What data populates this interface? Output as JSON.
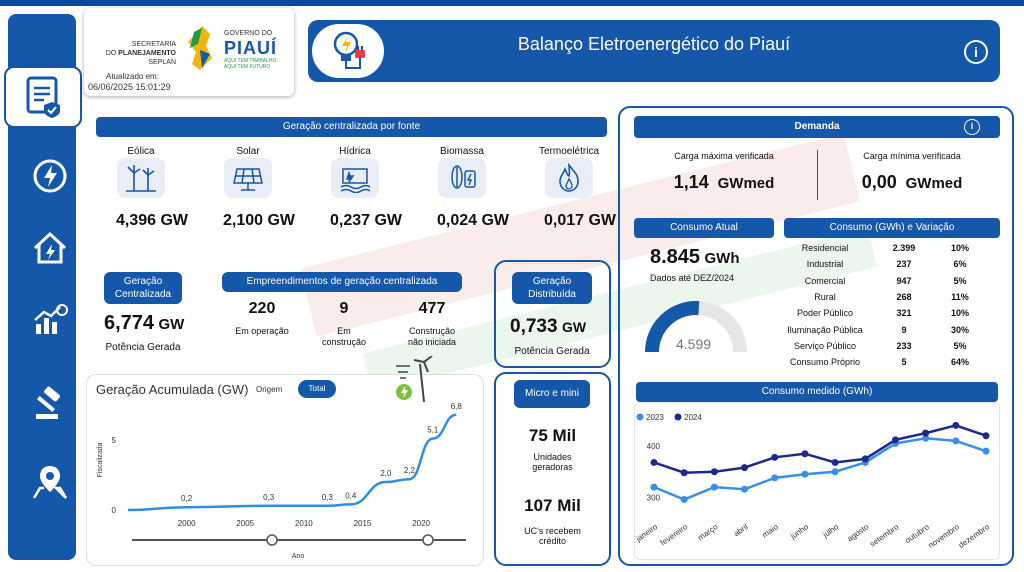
{
  "colors": {
    "primary": "#1557a8",
    "accent": "#4f8fd6",
    "line_2023": "#3a8ee6",
    "line_2024": "#1c2a8a"
  },
  "sidebar": {
    "icons": [
      "document-check-icon",
      "energy-cycle-icon",
      "home-energy-icon",
      "chart-growth-icon",
      "gavel-icon",
      "map-pin-icon"
    ]
  },
  "logo": {
    "line1": "SECRETARIA",
    "line2": "DO",
    "line2b": "PLANEJAMENTO",
    "line3": "SEPLAN",
    "gov": "GOVERNO DO",
    "state": "PIAUÍ",
    "tag1": "AQUI TEM TRABALHO,",
    "tag2": "AQUI TEM FUTURO",
    "updated_label": "Atualizado em:",
    "updated_value": "06/06/2025 15:01:29"
  },
  "header": {
    "title": "Balanço Eletroenergético do Piauí"
  },
  "geracao_fonte": {
    "title": "Geração centralizada por fonte",
    "items": [
      {
        "name": "Eólica",
        "value": "4,396 GW",
        "icon": "wind-turbine-icon"
      },
      {
        "name": "Solar",
        "value": "2,100 GW",
        "icon": "solar-panel-icon"
      },
      {
        "name": "Hídrica",
        "value": "0,237 GW",
        "icon": "hydro-dam-icon"
      },
      {
        "name": "Biomassa",
        "value": "0,024 GW",
        "icon": "biomass-icon"
      },
      {
        "name": "Termoelétrica",
        "value": "0,017 GW",
        "icon": "flame-icon"
      }
    ]
  },
  "centralizada": {
    "title1": "Geração",
    "title2": "Centralizada",
    "value": "6,774",
    "unit": "GW",
    "label": "Potência Gerada"
  },
  "empreendimentos": {
    "title": "Empreendimentos de geração centralizada",
    "items": [
      {
        "value": "220",
        "l1": "Em operação",
        "l2": ""
      },
      {
        "value": "9",
        "l1": "Em",
        "l2": "construção"
      },
      {
        "value": "477",
        "l1": "Construção",
        "l2": "não iniciada"
      }
    ]
  },
  "distribuida": {
    "title1": "Geração",
    "title2": "Distribuída",
    "value": "0,733",
    "unit": "GW",
    "label": "Potência Gerada"
  },
  "micro": {
    "title": "Micro e mini",
    "v1": "75 Mil",
    "l1a": "Unidades",
    "l1b": "geradoras",
    "v2": "107 Mil",
    "l2a": "UC's recebem",
    "l2b": "crédito"
  },
  "acumulada": {
    "title": "Geração Acumulada (GW)",
    "btn_origem": "Origem",
    "btn_total": "Total"
  },
  "demanda": {
    "title": "Demanda",
    "max_label": "Carga máxima verificada",
    "max_value": "1,14",
    "max_unit": "GWmed",
    "min_label": "Carga mínima verificada",
    "min_value": "0,00",
    "min_unit": "GWmed"
  },
  "consumo_atual": {
    "title": "Consumo Atual",
    "value": "8.845",
    "unit": "GWh",
    "note": "Dados até DEZ/2024",
    "gauge_value": "4.599",
    "gauge_fraction": 0.52
  },
  "consumo_var": {
    "title": "Consumo (GWh) e Variação",
    "rows": [
      {
        "name": "Residencial",
        "gwh": "2.399",
        "pct": "10%"
      },
      {
        "name": "Industrial",
        "gwh": "237",
        "pct": "6%"
      },
      {
        "name": "Comercial",
        "gwh": "947",
        "pct": "5%"
      },
      {
        "name": "Rural",
        "gwh": "268",
        "pct": "11%"
      },
      {
        "name": "Poder Público",
        "gwh": "321",
        "pct": "10%"
      },
      {
        "name": "Iluminação Pública",
        "gwh": "9",
        "pct": "30%"
      },
      {
        "name": "Serviço Público",
        "gwh": "233",
        "pct": "5%"
      },
      {
        "name": "Consumo Próprio",
        "gwh": "5",
        "pct": "64%"
      }
    ]
  },
  "chart_data": [
    {
      "type": "line",
      "title": "Geração Acumulada (GW)",
      "xlabel": "Ano",
      "ylabel": "Fiscalizada",
      "x": [
        1995,
        2000,
        2007,
        2012,
        2014,
        2017,
        2019,
        2021,
        2023
      ],
      "values": [
        0,
        0.2,
        0.3,
        0.3,
        0.4,
        2.0,
        2.2,
        5.1,
        6.8
      ],
      "data_labels": [
        {
          "x": 2000,
          "label": "0,2"
        },
        {
          "x": 2007,
          "label": "0,3"
        },
        {
          "x": 2012,
          "label": "0,3"
        },
        {
          "x": 2014,
          "label": "0,4"
        },
        {
          "x": 2017,
          "label": "2,0"
        },
        {
          "x": 2019,
          "label": "2,2"
        },
        {
          "x": 2021,
          "label": "5,1"
        },
        {
          "x": 2023,
          "label": "6,8"
        }
      ],
      "xticks": [
        2000,
        2005,
        2010,
        2015,
        2020
      ],
      "yticks": [
        0,
        5
      ],
      "xlim": [
        1995,
        2024
      ],
      "ylim": [
        0,
        7
      ],
      "grid": false
    },
    {
      "type": "line",
      "title": "Consumo medido (GWh)",
      "categories": [
        "janeiro",
        "fevereiro",
        "março",
        "abril",
        "maio",
        "junho",
        "julho",
        "agosto",
        "setembro",
        "outubro",
        "novembro",
        "dezembro"
      ],
      "series": [
        {
          "name": "2023",
          "values": [
            320,
            296,
            320,
            316,
            338,
            345,
            350,
            368,
            405,
            415,
            410,
            390
          ]
        },
        {
          "name": "2024",
          "values": [
            368,
            348,
            350,
            358,
            378,
            385,
            368,
            375,
            412,
            425,
            440,
            420
          ]
        }
      ],
      "yticks": [
        300,
        400
      ],
      "ylim": [
        260,
        470
      ],
      "legend": "top-left",
      "grid": false
    }
  ]
}
